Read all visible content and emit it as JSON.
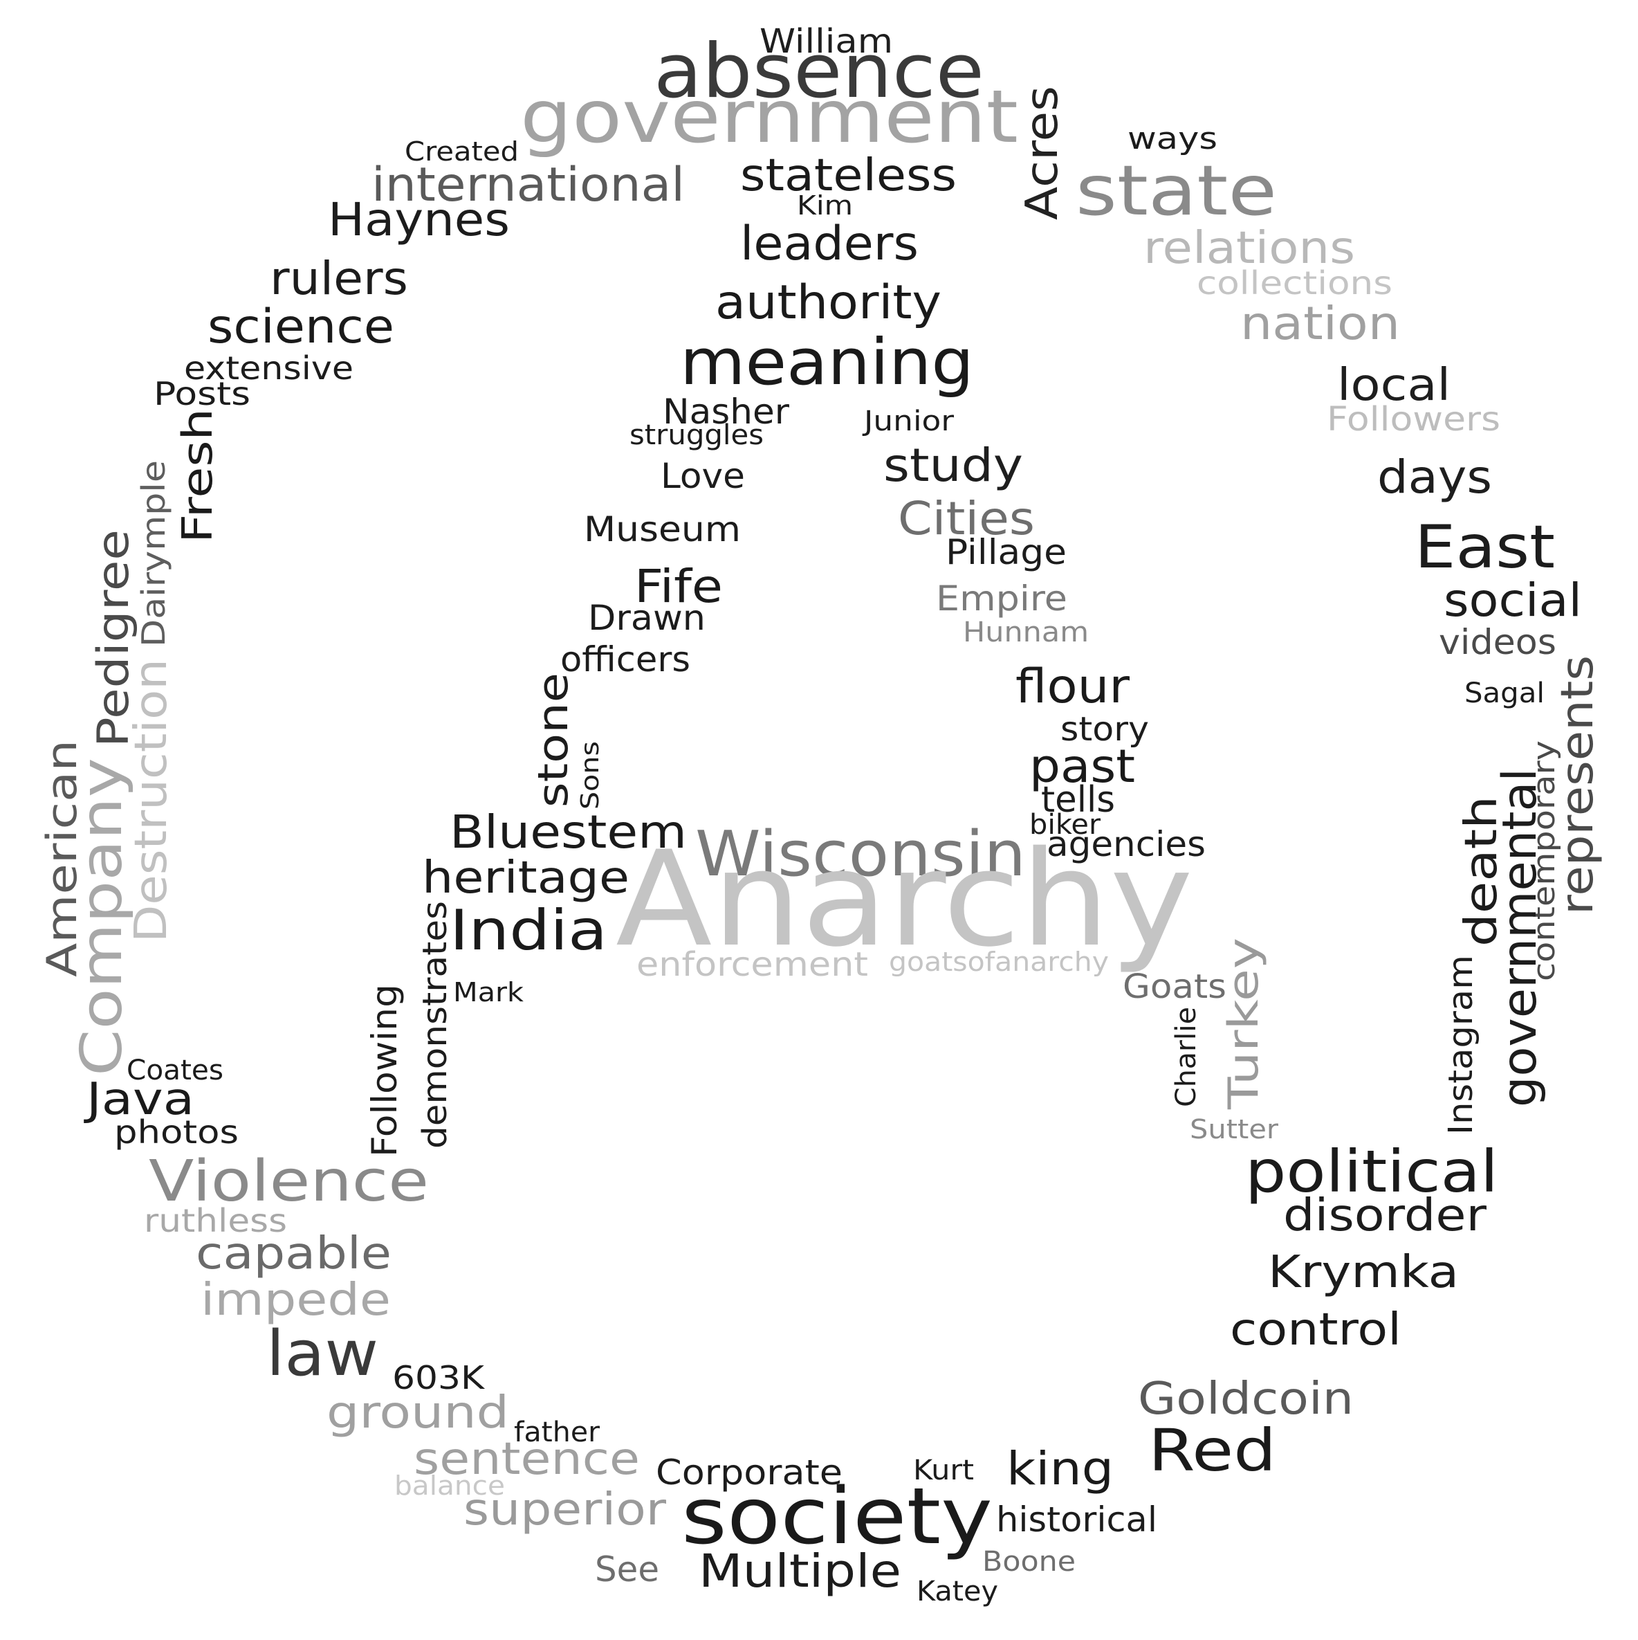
{
  "words": [
    {
      "text": "William",
      "color": "#1e1e1e"
    },
    {
      "text": "absence",
      "color": "#3a3a3a"
    },
    {
      "text": "government",
      "color": "#a3a3a3"
    },
    {
      "text": "Acres",
      "color": "#222222"
    },
    {
      "text": "ways",
      "color": "#1c1c1c"
    },
    {
      "text": "state",
      "color": "#8a8a8a"
    },
    {
      "text": "Created",
      "color": "#1c1c1c"
    },
    {
      "text": "international",
      "color": "#5a5a5a"
    },
    {
      "text": "stateless",
      "color": "#1a1a1a"
    },
    {
      "text": "Kim",
      "color": "#1c1c1c"
    },
    {
      "text": "Haynes",
      "color": "#1c1c1c"
    },
    {
      "text": "leaders",
      "color": "#1a1a1a"
    },
    {
      "text": "relations",
      "color": "#b8b8b8"
    },
    {
      "text": "collections",
      "color": "#c4c4c4"
    },
    {
      "text": "rulers",
      "color": "#1c1c1c"
    },
    {
      "text": "authority",
      "color": "#1a1a1a"
    },
    {
      "text": "nation",
      "color": "#a0a0a0"
    },
    {
      "text": "science",
      "color": "#1a1a1a"
    },
    {
      "text": "meaning",
      "color": "#1a1a1a"
    },
    {
      "text": "extensive",
      "color": "#1c1c1c"
    },
    {
      "text": "local",
      "color": "#1e1e1e"
    },
    {
      "text": "Posts",
      "color": "#1c1c1c"
    },
    {
      "text": "Nasher",
      "color": "#1c1c1c"
    },
    {
      "text": "Junior",
      "color": "#1c1c1c"
    },
    {
      "text": "Followers",
      "color": "#bdbdbd"
    },
    {
      "text": "struggles",
      "color": "#1c1c1c"
    },
    {
      "text": "Fresh",
      "color": "#1a1a1a"
    },
    {
      "text": "study",
      "color": "#1e1e1e"
    },
    {
      "text": "Love",
      "color": "#1c1c1c"
    },
    {
      "text": "days",
      "color": "#1e1e1e"
    },
    {
      "text": "Dairymple",
      "color": "#5e5e5e"
    },
    {
      "text": "Cities",
      "color": "#6e6e6e"
    },
    {
      "text": "Museum",
      "color": "#1c1c1c"
    },
    {
      "text": "East",
      "color": "#1c1c1c"
    },
    {
      "text": "Pillage",
      "color": "#1c1c1c"
    },
    {
      "text": "Pedigree",
      "color": "#4a4a4a"
    },
    {
      "text": "Fife",
      "color": "#1a1a1a"
    },
    {
      "text": "social",
      "color": "#1c1c1c"
    },
    {
      "text": "Empire",
      "color": "#7a7a7a"
    },
    {
      "text": "Drawn",
      "color": "#1c1c1c"
    },
    {
      "text": "Hunnam",
      "color": "#8a8a8a"
    },
    {
      "text": "videos",
      "color": "#4a4a4a"
    },
    {
      "text": "officers",
      "color": "#1c1c1c"
    },
    {
      "text": "represents",
      "color": "#4a4a4a"
    },
    {
      "text": "Destruction",
      "color": "#c0c0c0"
    },
    {
      "text": "flour",
      "color": "#1a1a1a"
    },
    {
      "text": "Sagal",
      "color": "#1c1c1c"
    },
    {
      "text": "American",
      "color": "#5a5a5a"
    },
    {
      "text": "stone",
      "color": "#1c1c1c"
    },
    {
      "text": "story",
      "color": "#1c1c1c"
    },
    {
      "text": "Sons",
      "color": "#1c1c1c"
    },
    {
      "text": "contemporary",
      "color": "#4a4a4a"
    },
    {
      "text": "past",
      "color": "#1a1a1a"
    },
    {
      "text": "tells",
      "color": "#1c1c1c"
    },
    {
      "text": "death",
      "color": "#1c1c1c"
    },
    {
      "text": "Company",
      "color": "#a8a8a8"
    },
    {
      "text": "Bluestem",
      "color": "#1a1a1a"
    },
    {
      "text": "biker",
      "color": "#1c1c1c"
    },
    {
      "text": "Wisconsin",
      "color": "#7a7a7a"
    },
    {
      "text": "agencies",
      "color": "#1c1c1c"
    },
    {
      "text": "governmental",
      "color": "#1c1c1c"
    },
    {
      "text": "heritage",
      "color": "#1c1c1c"
    },
    {
      "text": "Anarchy",
      "color": "#c4c4c4"
    },
    {
      "text": "demonstrates",
      "color": "#1c1c1c"
    },
    {
      "text": "India",
      "color": "#1a1a1a"
    },
    {
      "text": "enforcement",
      "color": "#c4c4c4"
    },
    {
      "text": "goatsofanarchy",
      "color": "#c4c4c4"
    },
    {
      "text": "Instagram",
      "color": "#1c1c1c"
    },
    {
      "text": "Turkey",
      "color": "#9a9a9a"
    },
    {
      "text": "Goats",
      "color": "#6e6e6e"
    },
    {
      "text": "Mark",
      "color": "#1c1c1c"
    },
    {
      "text": "Following",
      "color": "#1c1c1c"
    },
    {
      "text": "Charlie",
      "color": "#1c1c1c"
    },
    {
      "text": "Coates",
      "color": "#1c1c1c"
    },
    {
      "text": "Java",
      "color": "#1a1a1a"
    },
    {
      "text": "Sutter",
      "color": "#8a8a8a"
    },
    {
      "text": "photos",
      "color": "#1c1c1c"
    },
    {
      "text": "political",
      "color": "#1a1a1a"
    },
    {
      "text": "Violence",
      "color": "#8a8a8a"
    },
    {
      "text": "disorder",
      "color": "#1c1c1c"
    },
    {
      "text": "ruthless",
      "color": "#a8a8a8"
    },
    {
      "text": "capable",
      "color": "#6a6a6a"
    },
    {
      "text": "Krymka",
      "color": "#1c1c1c"
    },
    {
      "text": "impede",
      "color": "#a8a8a8"
    },
    {
      "text": "control",
      "color": "#1a1a1a"
    },
    {
      "text": "law",
      "color": "#3a3a3a"
    },
    {
      "text": "603K",
      "color": "#1c1c1c"
    },
    {
      "text": "Goldcoin",
      "color": "#5a5a5a"
    },
    {
      "text": "ground",
      "color": "#a0a0a0"
    },
    {
      "text": "father",
      "color": "#1c1c1c"
    },
    {
      "text": "Red",
      "color": "#1a1a1a"
    },
    {
      "text": "sentence",
      "color": "#a0a0a0"
    },
    {
      "text": "Kurt",
      "color": "#1c1c1c"
    },
    {
      "text": "king",
      "color": "#1a1a1a"
    },
    {
      "text": "Corporate",
      "color": "#1c1c1c"
    },
    {
      "text": "balance",
      "color": "#c8c8c8"
    },
    {
      "text": "superior",
      "color": "#9a9a9a"
    },
    {
      "text": "society",
      "color": "#1a1a1a"
    },
    {
      "text": "historical",
      "color": "#1c1c1c"
    },
    {
      "text": "See",
      "color": "#6e6e6e"
    },
    {
      "text": "Multiple",
      "color": "#1c1c1c"
    },
    {
      "text": "Boone",
      "color": "#6e6e6e"
    },
    {
      "text": "Katey",
      "color": "#1c1c1c"
    }
  ]
}
